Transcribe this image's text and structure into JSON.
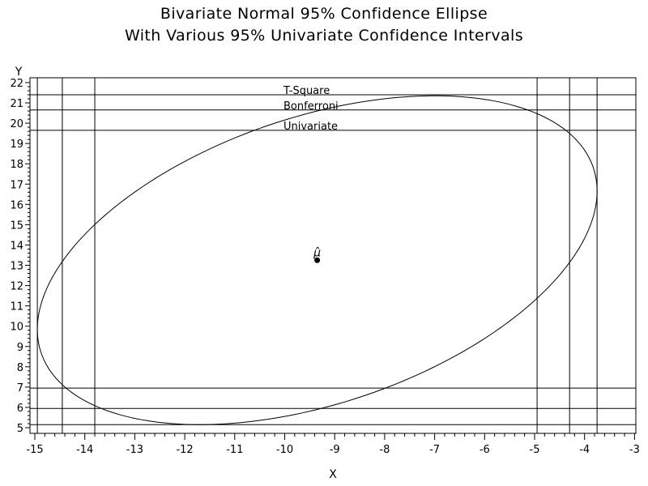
{
  "chart_data": {
    "type": "scatter",
    "title": "Bivariate Normal 95% Confidence Ellipse",
    "subtitle": "With Various 95% Univariate Confidence Intervals",
    "xlabel": "X",
    "ylabel": "Y",
    "xlim": [
      -15,
      -3
    ],
    "ylim": [
      5,
      22
    ],
    "x_ticks": [
      -15,
      -14,
      -13,
      -12,
      -11,
      -10,
      -9,
      -8,
      -7,
      -6,
      -5,
      -4,
      -3
    ],
    "y_ticks": [
      5,
      6,
      7,
      8,
      9,
      10,
      11,
      12,
      13,
      14,
      15,
      16,
      17,
      18,
      19,
      20,
      21,
      22
    ],
    "grid": false,
    "mean": {
      "x": -9.35,
      "y": 13.25,
      "label": "μ̂"
    },
    "ellipse": {
      "x_range": [
        -14.95,
        -3.75
      ],
      "y_range": [
        5.15,
        21.35
      ]
    },
    "intervals": [
      {
        "name": "T-Square",
        "x": [
          -14.95,
          -3.75
        ],
        "y": [
          5.15,
          21.4
        ]
      },
      {
        "name": "Bonferroni",
        "x": [
          -14.45,
          -4.3
        ],
        "y": [
          5.95,
          20.65
        ]
      },
      {
        "name": "Univariate",
        "x": [
          -13.8,
          -4.95
        ],
        "y": [
          6.95,
          19.65
        ]
      }
    ]
  }
}
